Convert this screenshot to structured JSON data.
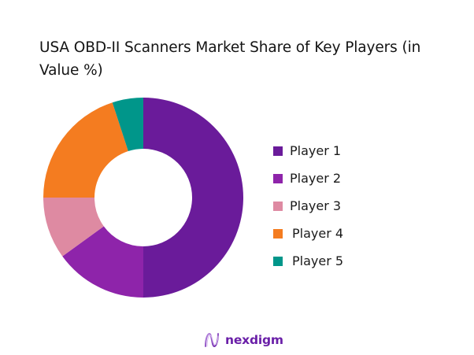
{
  "chart_data": {
    "type": "pie",
    "subtype": "donut",
    "title": "USA OBD-II Scanners Market Share of Key Players (in Value %)",
    "categories": [
      "Player 1",
      "Player 2",
      "Player 3",
      "Player 4",
      "Player 5"
    ],
    "values": [
      50,
      15,
      10,
      20,
      5
    ],
    "unit": "%",
    "colors": [
      "#6a1b9a",
      "#8e24aa",
      "#de8aa2",
      "#f47c20",
      "#00968a"
    ],
    "legend_position": "right",
    "start_angle": "12 o'clock",
    "direction": "clockwise"
  },
  "title_line1": "USA OBD-II Scanners Market Share of Key Players (in",
  "title_line2": "Value %)",
  "legend": [
    {
      "label": "Player 1",
      "color": "#6a1b9a"
    },
    {
      "label": "Player 2",
      "color": "#8e24aa"
    },
    {
      "label": "Player 3",
      "color": "#de8aa2"
    },
    {
      "label": "Player 4",
      "color": "#f47c20"
    },
    {
      "label": "Player 5",
      "color": "#00968a"
    }
  ],
  "footer": {
    "brand": "nexdigm",
    "brand_color": "#6a1fa8"
  }
}
